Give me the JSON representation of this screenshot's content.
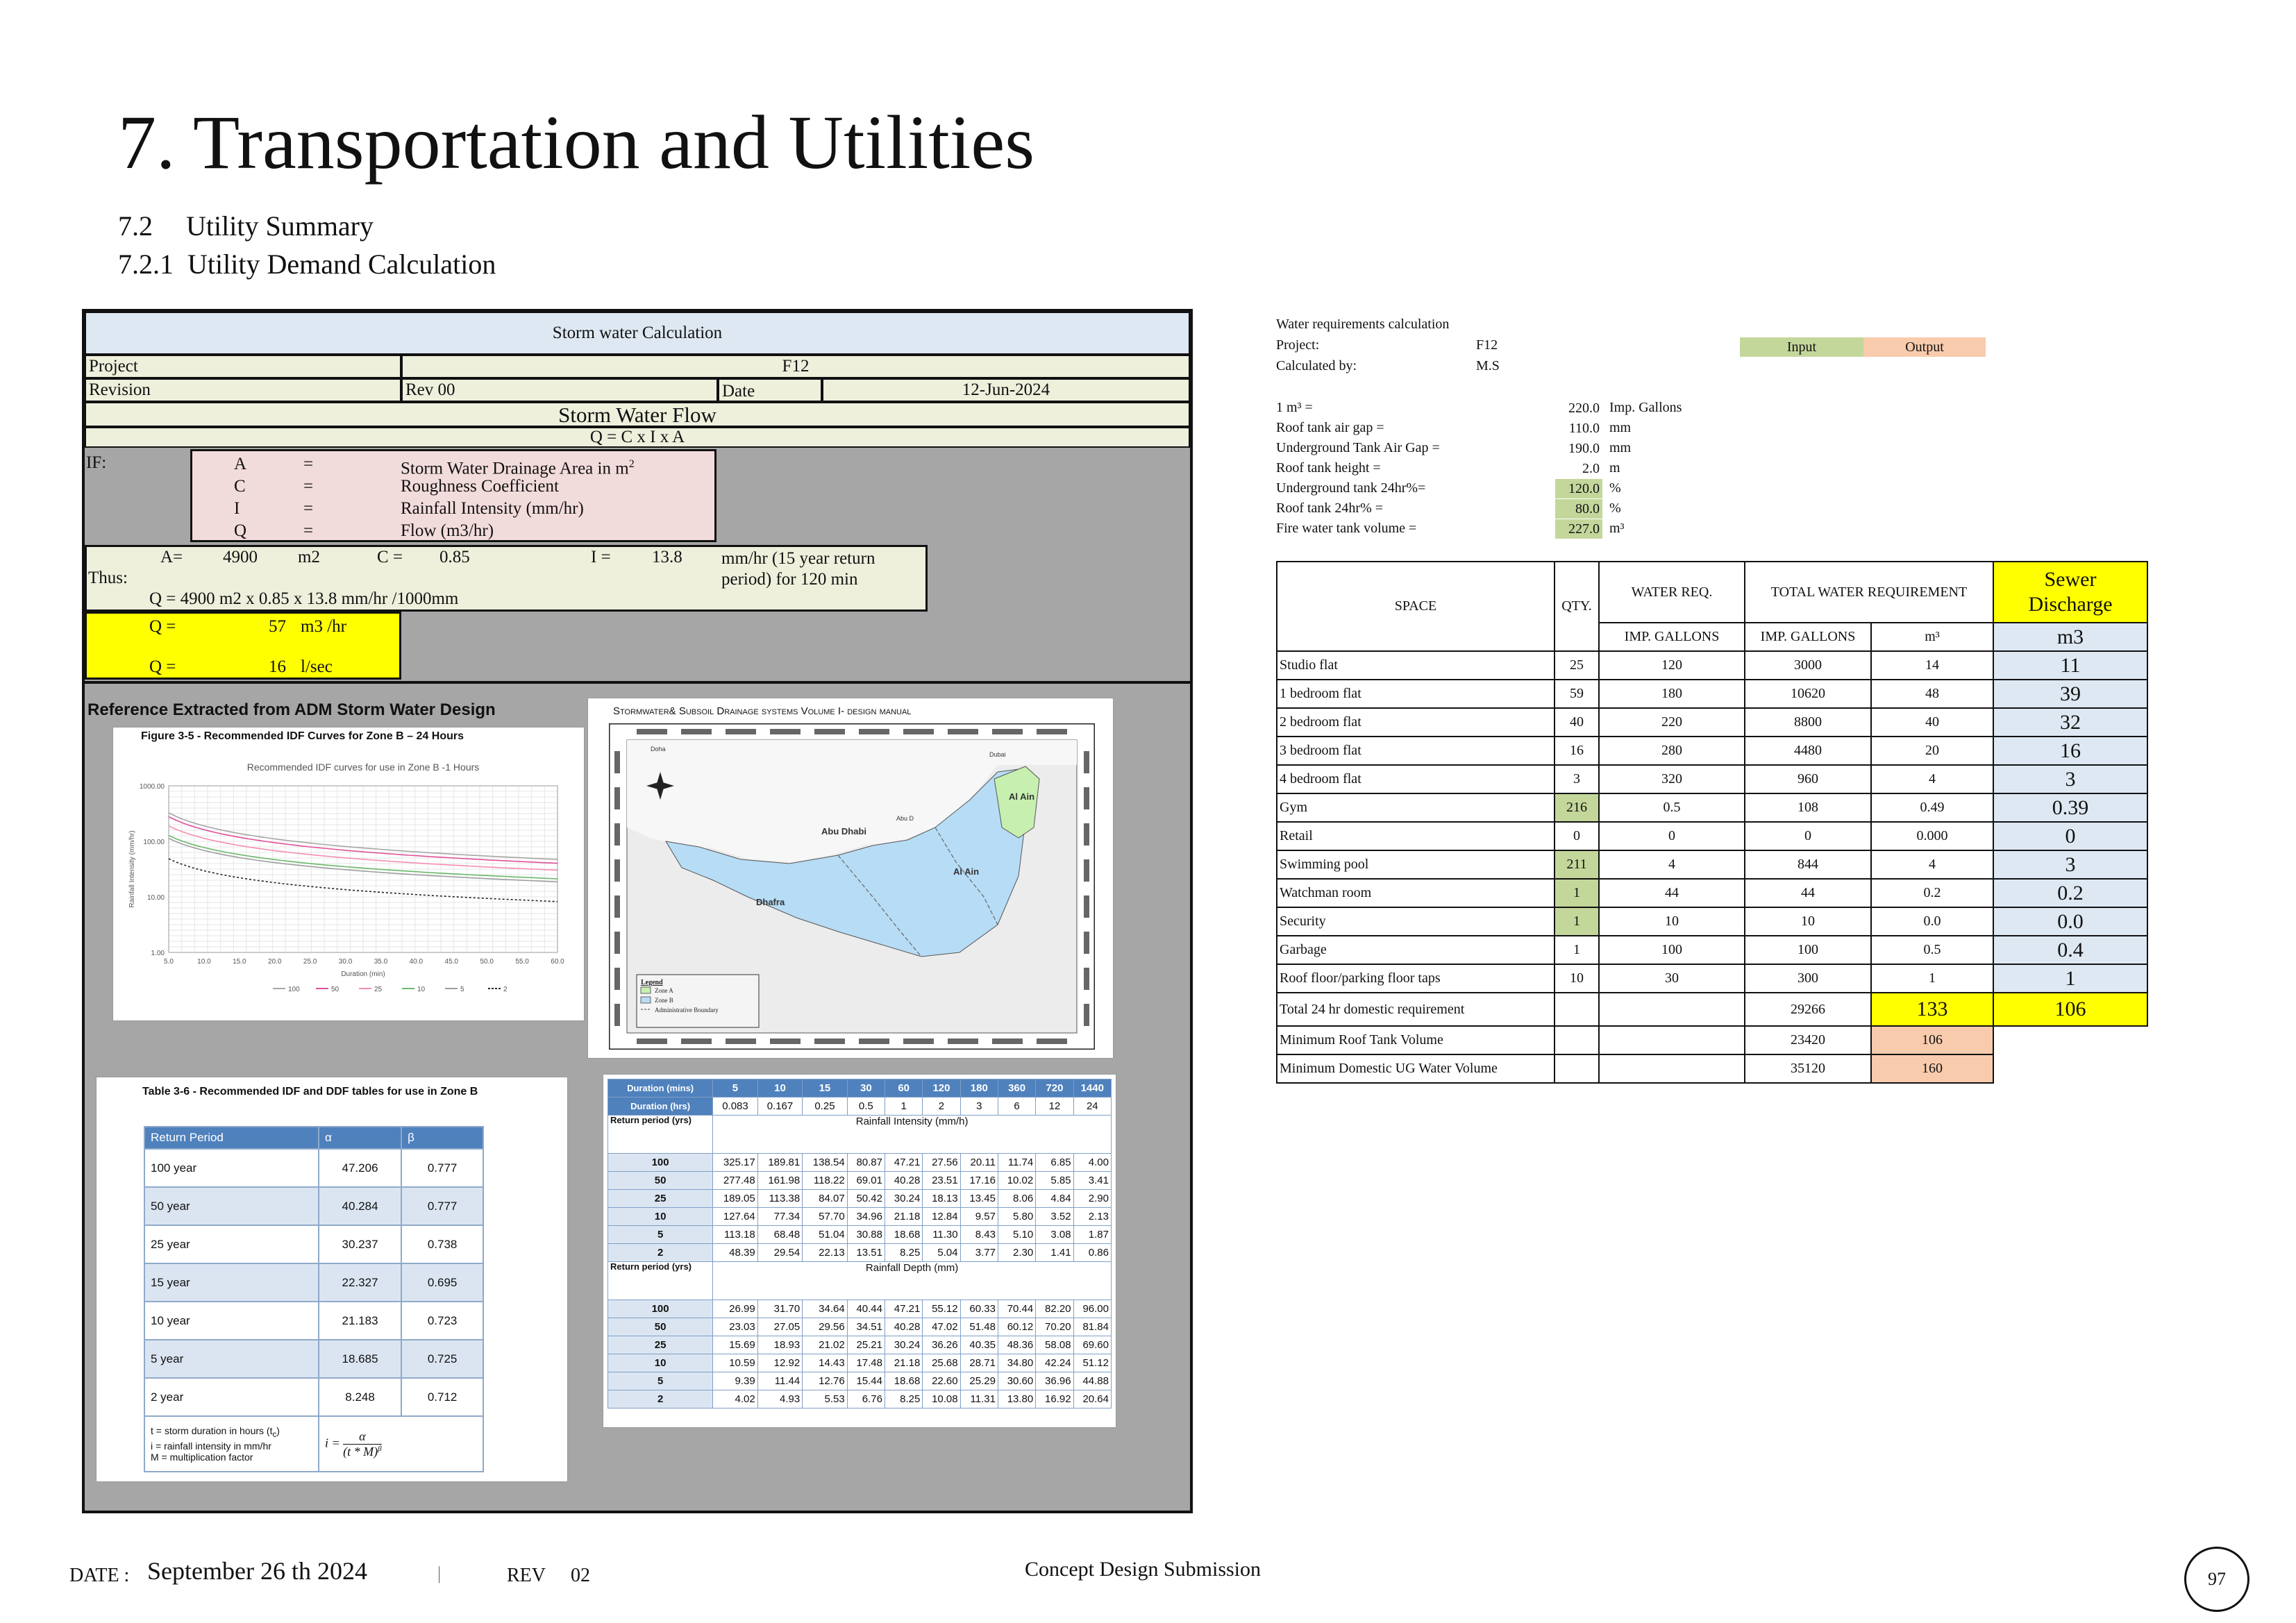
{
  "header": {
    "title": "7. Transportation and Utilities",
    "section": "7.2",
    "section_title": "Utility Summary",
    "subsection": "7.2.1",
    "subsection_title": "Utility Demand Calculation"
  },
  "storm": {
    "title": "Storm water Calculation",
    "project_label": "Project",
    "project_value": "F12",
    "revision_label": "Revision",
    "revision_value": "Rev 00",
    "date_label": "Date",
    "date_value": "12-Jun-2024",
    "flow_title": "Storm Water Flow",
    "formula": "Q = C x I x A",
    "if_label": "IF:",
    "legend": [
      {
        "sym": "A",
        "eq": "=",
        "desc": "Storm Water Drainage Area in m",
        "sup": "2"
      },
      {
        "sym": "C",
        "eq": "=",
        "desc": "Roughness Coefficient",
        "sup": ""
      },
      {
        "sym": "I",
        "eq": "=",
        "desc": "Rainfall Intensity (mm/hr)",
        "sup": ""
      },
      {
        "sym": "Q",
        "eq": "=",
        "desc": "Flow (m3/hr)",
        "sup": ""
      }
    ],
    "a_label": "A=",
    "a_value": "4900",
    "a_unit": "m2",
    "c_label": "C =",
    "c_value": "0.85",
    "i_label": "I =",
    "i_value": "13.8",
    "i_note_1": "mm/hr (15 year return",
    "i_note_2": "period) for 120 min",
    "thus_label": "Thus:",
    "calc_line": "Q = 4900 m2 x 0.85 x 13.8 mm/hr /1000mm",
    "q1_label": "Q =",
    "q1_value": "57",
    "q1_unit": "m3 /hr",
    "q2_label": "Q =",
    "q2_value": "16",
    "q2_unit": "l/sec",
    "ref_title": "Reference Extracted from ADM Storm Water Design"
  },
  "idf_chart": {
    "figure_caption": "Figure 3-5 - Recommended IDF Curves for Zone B – 24 Hours",
    "title": "Recommended IDF curves for use in Zone B -1 Hours",
    "ylabel": "Rainfall Intensity (mm/hr)",
    "xlabel": "Duration (min)",
    "y_ticks": [
      "1000.00",
      "100.00",
      "10.00",
      "1.00"
    ],
    "x_ticks": [
      "5.0",
      "10.0",
      "15.0",
      "20.0",
      "25.0",
      "30.0",
      "35.0",
      "40.0",
      "45.0",
      "50.0",
      "55.0",
      "60.0"
    ],
    "legend": [
      "100",
      "50",
      "25",
      "10",
      "5",
      "2"
    ],
    "colors": [
      "#a6a6a6",
      "#e0529a",
      "#f48fb1",
      "#6cb86c",
      "#9e9e9e",
      "#222222"
    ]
  },
  "map": {
    "title": "Stormwater& Subsoil Drainage systems Volume I- design manual",
    "places": [
      "Abu Dhabi",
      "Al Ain",
      "Al Ain",
      "Dhafra",
      "Dubai",
      "Doha",
      "Abu D"
    ],
    "legend_title": "Legend",
    "legend": [
      "Zone A",
      "Zone B",
      "Administrative Boundary"
    ],
    "zone_a_color": "#c7f0b0",
    "zone_b_color": "#b7dcf5"
  },
  "return_table": {
    "caption": "Table 3-6 - Recommended IDF and DDF tables for use in Zone B",
    "headers": [
      "Return Period",
      "α",
      "β"
    ],
    "rows": [
      [
        "100 year",
        "47.206",
        "0.777"
      ],
      [
        "50 year",
        "40.284",
        "0.777"
      ],
      [
        "25 year",
        "30.237",
        "0.738"
      ],
      [
        "15 year",
        "22.327",
        "0.695"
      ],
      [
        "10 year",
        "21.183",
        "0.723"
      ],
      [
        "5 year",
        "18.685",
        "0.725"
      ],
      [
        "2 year",
        "8.248",
        "0.712"
      ]
    ],
    "note_1": "t = storm duration in hours (t",
    "note_1_sub": "c",
    "note_1_end": ")",
    "note_2": "i = rainfall intensity in mm/hr",
    "note_3": "M = multiplication factor",
    "formula_lhs": "i =",
    "formula_num": "α",
    "formula_den": "(t * M)",
    "formula_den_sup": "β"
  },
  "ddf_table": {
    "dur_mins_label": "Duration (mins)",
    "dur_mins": [
      "5",
      "10",
      "15",
      "30",
      "60",
      "120",
      "180",
      "360",
      "720",
      "1440"
    ],
    "dur_hrs_label": "Duration (hrs)",
    "dur_hrs": [
      "0.083",
      "0.167",
      "0.25",
      "0.5",
      "1",
      "2",
      "3",
      "6",
      "12",
      "24"
    ],
    "rp_label": "Return period (yrs)",
    "intensity_label": "Rainfall Intensity (mm/h)",
    "intensity": [
      [
        "100",
        "325.17",
        "189.81",
        "138.54",
        "80.87",
        "47.21",
        "27.56",
        "20.11",
        "11.74",
        "6.85",
        "4.00"
      ],
      [
        "50",
        "277.48",
        "161.98",
        "118.22",
        "69.01",
        "40.28",
        "23.51",
        "17.16",
        "10.02",
        "5.85",
        "3.41"
      ],
      [
        "25",
        "189.05",
        "113.38",
        "84.07",
        "50.42",
        "30.24",
        "18.13",
        "13.45",
        "8.06",
        "4.84",
        "2.90"
      ],
      [
        "10",
        "127.64",
        "77.34",
        "57.70",
        "34.96",
        "21.18",
        "12.84",
        "9.57",
        "5.80",
        "3.52",
        "2.13"
      ],
      [
        "5",
        "113.18",
        "68.48",
        "51.04",
        "30.88",
        "18.68",
        "11.30",
        "8.43",
        "5.10",
        "3.08",
        "1.87"
      ],
      [
        "2",
        "48.39",
        "29.54",
        "22.13",
        "13.51",
        "8.25",
        "5.04",
        "3.77",
        "2.30",
        "1.41",
        "0.86"
      ]
    ],
    "depth_label": "Rainfall Depth (mm)",
    "depth": [
      [
        "100",
        "26.99",
        "31.70",
        "34.64",
        "40.44",
        "47.21",
        "55.12",
        "60.33",
        "70.44",
        "82.20",
        "96.00"
      ],
      [
        "50",
        "23.03",
        "27.05",
        "29.56",
        "34.51",
        "40.28",
        "47.02",
        "51.48",
        "60.12",
        "70.20",
        "81.84"
      ],
      [
        "25",
        "15.69",
        "18.93",
        "21.02",
        "25.21",
        "30.24",
        "36.26",
        "40.35",
        "48.36",
        "58.08",
        "69.60"
      ],
      [
        "10",
        "10.59",
        "12.92",
        "14.43",
        "17.48",
        "21.18",
        "25.68",
        "28.71",
        "34.80",
        "42.24",
        "51.12"
      ],
      [
        "5",
        "9.39",
        "11.44",
        "12.76",
        "15.44",
        "18.68",
        "22.60",
        "25.29",
        "30.60",
        "36.96",
        "44.88"
      ],
      [
        "2",
        "4.02",
        "4.93",
        "5.53",
        "6.76",
        "8.25",
        "10.08",
        "11.31",
        "13.80",
        "16.92",
        "20.64"
      ]
    ]
  },
  "water": {
    "title": "Water requirements calculation",
    "project_label": "Project:",
    "project_value": "F12",
    "calc_label": "Calculated by:",
    "calc_value": "M.S",
    "input_label": "Input",
    "output_label": "Output",
    "input_color": "#c4d79b",
    "output_color": "#f8cbad",
    "params": [
      {
        "label": "1 m³ =",
        "value": "220.0",
        "unit": "Imp. Gallons",
        "input": false
      },
      {
        "label": "Roof tank air gap =",
        "value": "110.0",
        "unit": "mm",
        "input": false
      },
      {
        "label": "Underground Tank Air Gap =",
        "value": "190.0",
        "unit": "mm",
        "input": false
      },
      {
        "label": "Roof tank height =",
        "value": "2.0",
        "unit": "m",
        "input": false
      },
      {
        "label": "Underground tank 24hr%=",
        "value": "120.0",
        "unit": "%",
        "input": true
      },
      {
        "label": "Roof tank 24hr% =",
        "value": "80.0",
        "unit": "%",
        "input": true
      },
      {
        "label": "Fire water tank volume =",
        "value": "227.0",
        "unit": "m³",
        "input": true
      }
    ],
    "h_space": "SPACE",
    "h_qty": "QTY.",
    "h_req": "WATER REQ.",
    "h_total": "TOTAL WATER REQUIREMENT",
    "h_sewer_1": "Sewer",
    "h_sewer_2": "Discharge",
    "h_req_unit": "IMP. GALLONS",
    "h_total_unit": "IMP. GALLONS",
    "h_m3": "m³",
    "h_sewer_unit": "m3",
    "rows": [
      {
        "space": "Studio flat",
        "qty": "25",
        "req": "120",
        "total": "3000",
        "m3": "14",
        "sewer": "11",
        "qty_input": false
      },
      {
        "space": "1 bedroom flat",
        "qty": "59",
        "req": "180",
        "total": "10620",
        "m3": "48",
        "sewer": "39",
        "qty_input": false
      },
      {
        "space": "2 bedroom flat",
        "qty": "40",
        "req": "220",
        "total": "8800",
        "m3": "40",
        "sewer": "32",
        "qty_input": false
      },
      {
        "space": "3 bedroom flat",
        "qty": "16",
        "req": "280",
        "total": "4480",
        "m3": "20",
        "sewer": "16",
        "qty_input": false
      },
      {
        "space": "4 bedroom flat",
        "qty": "3",
        "req": "320",
        "total": "960",
        "m3": "4",
        "sewer": "3",
        "qty_input": false
      },
      {
        "space": "Gym",
        "qty": "216",
        "req": "0.5",
        "total": "108",
        "m3": "0.49",
        "sewer": "0.39",
        "qty_input": true
      },
      {
        "space": "Retail",
        "qty": "0",
        "req": "0",
        "total": "0",
        "m3": "0.000",
        "sewer": "0",
        "qty_input": false
      },
      {
        "space": "Swimming pool",
        "qty": "211",
        "req": "4",
        "total": "844",
        "m3": "4",
        "sewer": "3",
        "qty_input": true
      },
      {
        "space": "Watchman room",
        "qty": "1",
        "req": "44",
        "total": "44",
        "m3": "0.2",
        "sewer": "0.2",
        "qty_input": true
      },
      {
        "space": "Security",
        "qty": "1",
        "req": "10",
        "total": "10",
        "m3": "0.0",
        "sewer": "0.0",
        "qty_input": true
      },
      {
        "space": "Garbage",
        "qty": "1",
        "req": "100",
        "total": "100",
        "m3": "0.5",
        "sewer": "0.4",
        "qty_input": false
      },
      {
        "space": "Roof floor/parking floor taps",
        "qty": "10",
        "req": "30",
        "total": "300",
        "m3": "1",
        "sewer": "1",
        "qty_input": false
      }
    ],
    "total_label": "Total 24 hr domestic requirement",
    "total_gal": "29266",
    "total_m3": "133",
    "total_sewer": "106",
    "min_roof_label": "Minimum Roof Tank Volume",
    "min_roof_gal": "23420",
    "min_roof_m3": "106",
    "min_ug_label": "Minimum Domestic UG Water Volume",
    "min_ug_gal": "35120",
    "min_ug_m3": "160"
  },
  "footer": {
    "date_label": "DATE :",
    "date_value": "September 26 th 2024",
    "sep": "|",
    "rev_label": "REV",
    "rev_value": "02",
    "submission": "Concept Design Submission",
    "page": "97"
  }
}
